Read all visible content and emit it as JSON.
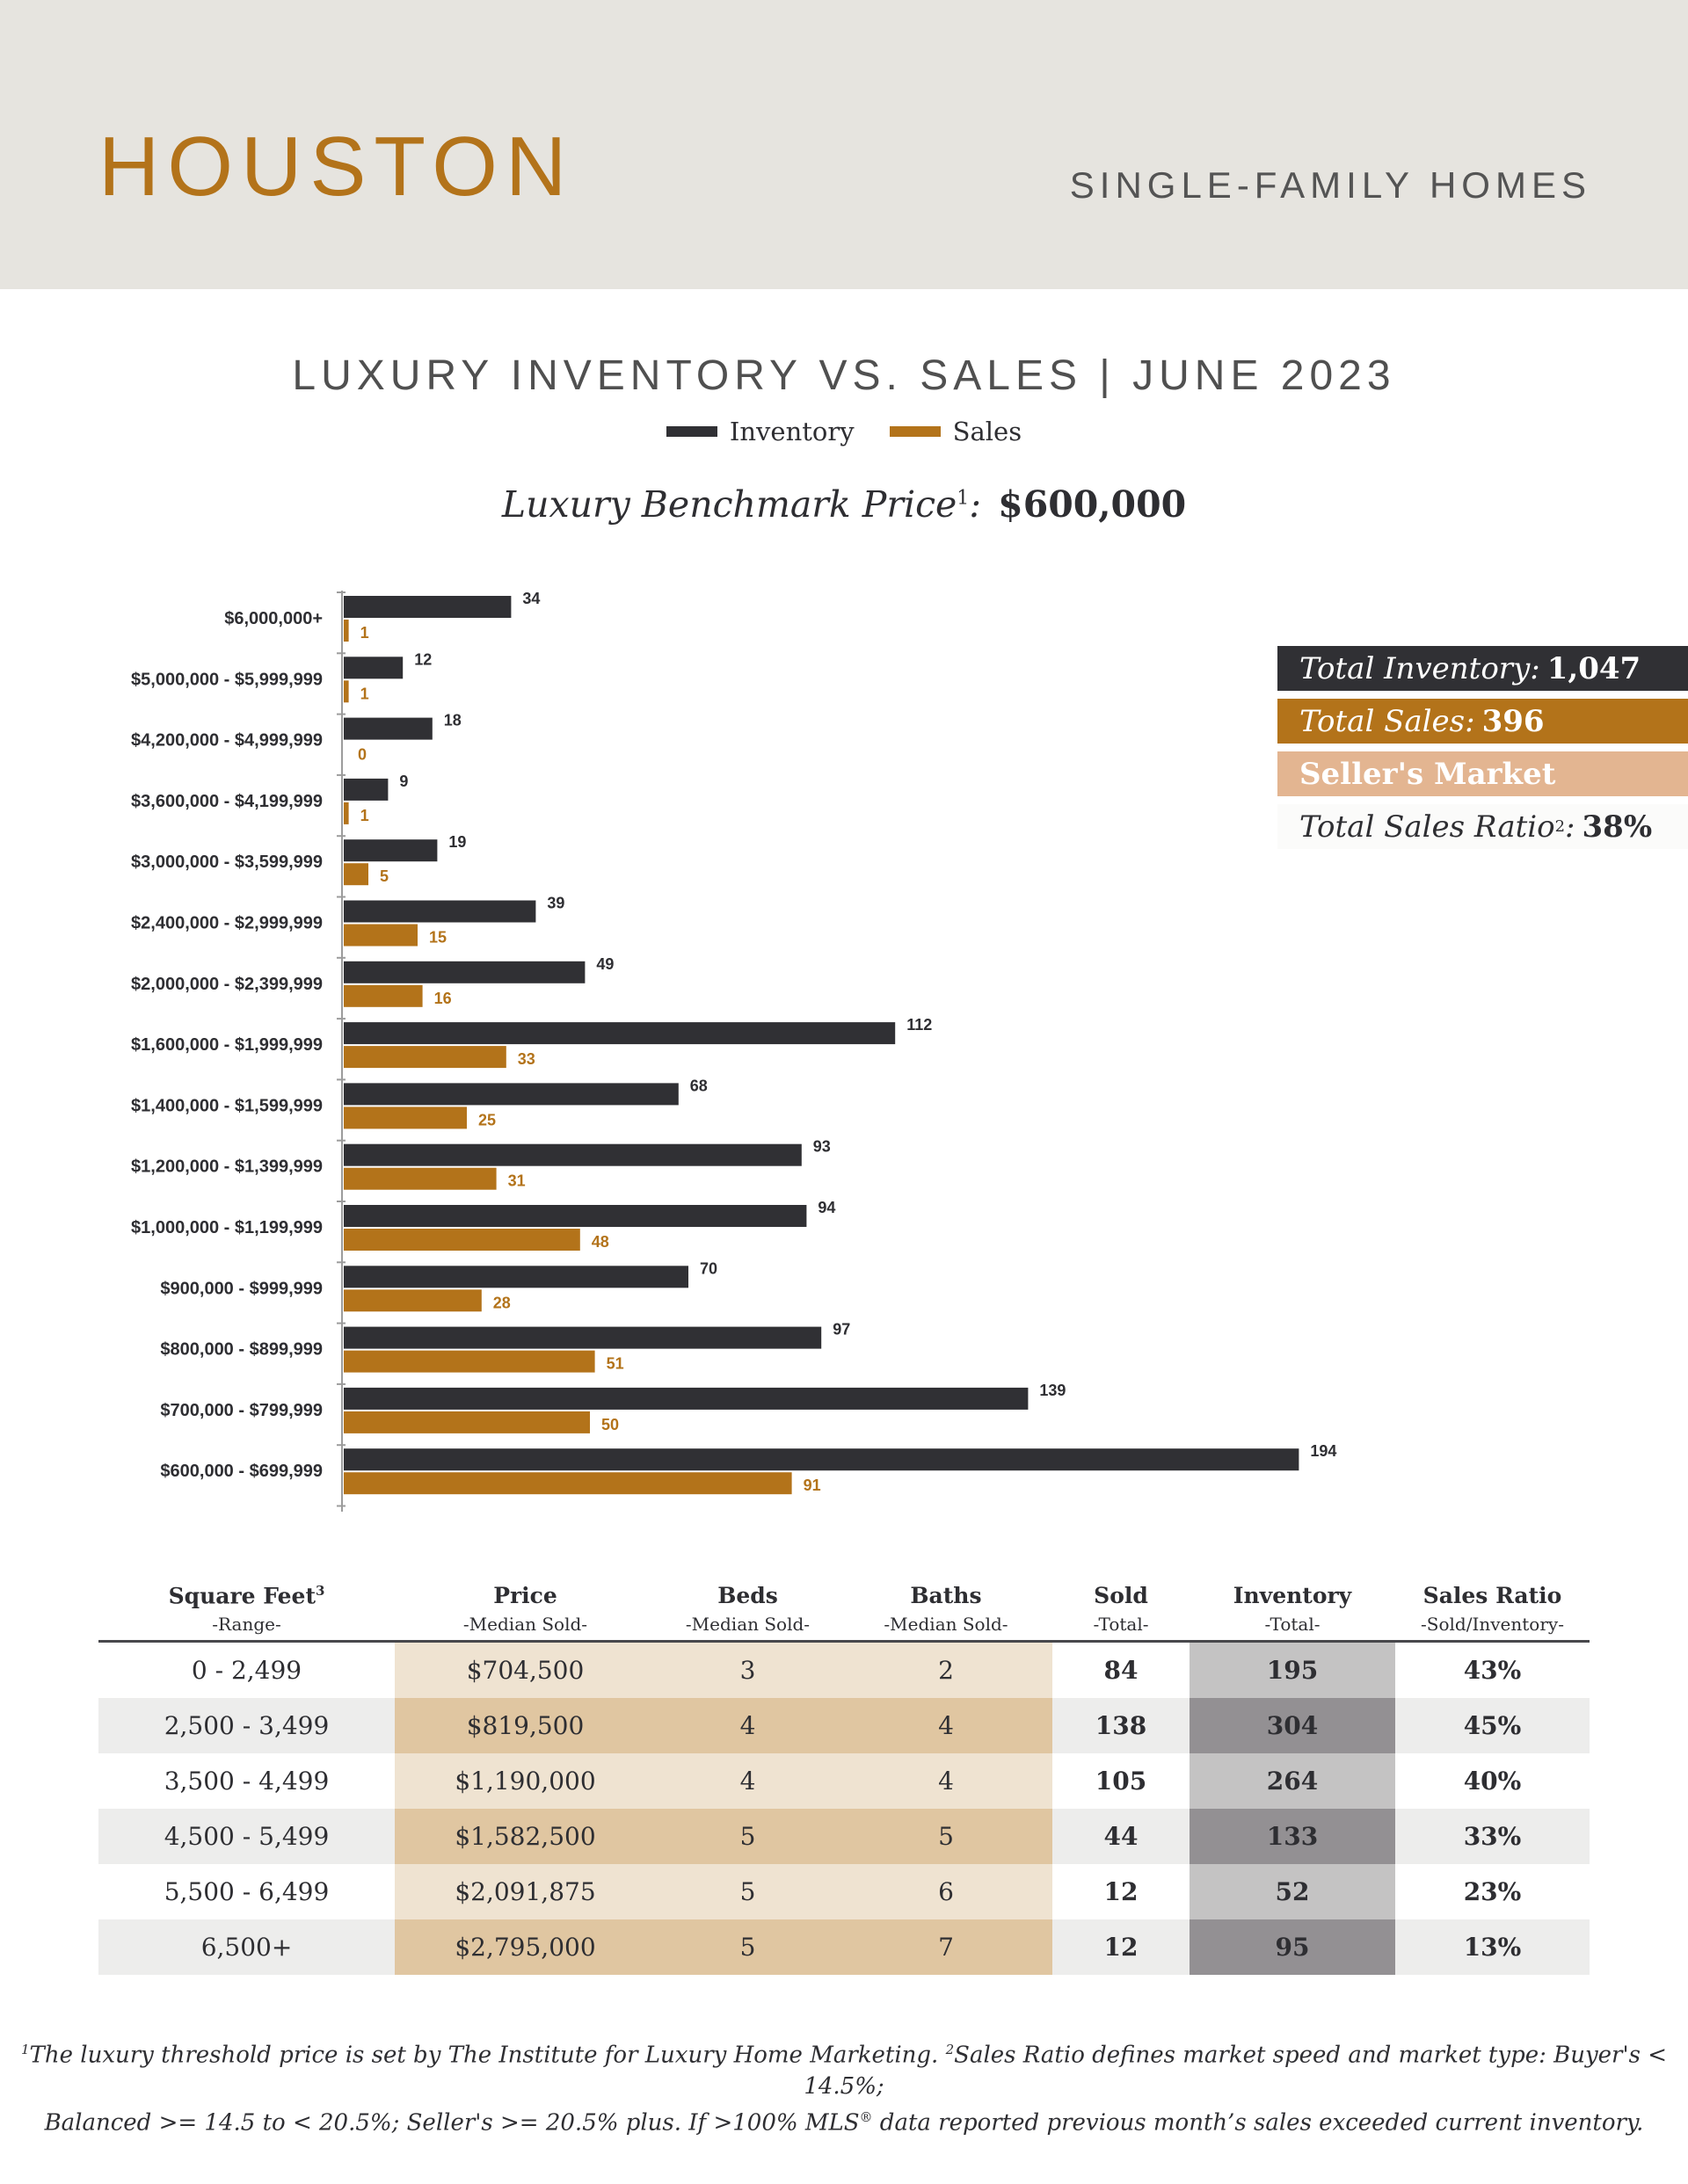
{
  "header": {
    "city": "HOUSTON",
    "property_type": "SINGLE-FAMILY HOMES"
  },
  "chart_data": {
    "type": "bar",
    "orientation": "horizontal",
    "title": "LUXURY INVENTORY VS. SALES | JUNE 2023",
    "categories": [
      "$6,000,000+",
      "$5,000,000 - $5,999,999",
      "$4,200,000 - $4,999,999",
      "$3,600,000 - $4,199,999",
      "$3,000,000 - $3,599,999",
      "$2,400,000 - $2,999,999",
      "$2,000,000 - $2,399,999",
      "$1,600,000 - $1,999,999",
      "$1,400,000 - $1,599,999",
      "$1,200,000 - $1,399,999",
      "$1,000,000 - $1,199,999",
      "$900,000 - $999,999",
      "$800,000 - $899,999",
      "$700,000 - $799,999",
      "$600,000 - $699,999"
    ],
    "series": [
      {
        "name": "Inventory",
        "color": "#303034",
        "values": [
          34,
          12,
          18,
          9,
          19,
          39,
          49,
          112,
          68,
          93,
          94,
          70,
          97,
          139,
          194
        ]
      },
      {
        "name": "Sales",
        "color": "#b3731a",
        "values": [
          1,
          1,
          0,
          1,
          5,
          15,
          16,
          33,
          25,
          31,
          48,
          28,
          51,
          50,
          91
        ]
      }
    ],
    "legend": "top-center",
    "grid": false
  },
  "benchmark": {
    "label": "Luxury Benchmark Price",
    "sup": "1",
    "value": "$600,000"
  },
  "summary": {
    "inventory_label": "Total Inventory:",
    "inventory_value": "1,047",
    "sales_label": "Total Sales:",
    "sales_value": "396",
    "market": "Seller's Market",
    "ratio_label": "Total Sales Ratio",
    "ratio_sup": "2",
    "ratio_value": "38%"
  },
  "table": {
    "headers": [
      {
        "title": "Square Feet",
        "sup": "3",
        "sub": "-Range-"
      },
      {
        "title": "Price",
        "sup": "",
        "sub": "-Median Sold-"
      },
      {
        "title": "Beds",
        "sup": "",
        "sub": "-Median Sold-"
      },
      {
        "title": "Baths",
        "sup": "",
        "sub": "-Median Sold-"
      },
      {
        "title": "Sold",
        "sup": "",
        "sub": "-Total-"
      },
      {
        "title": "Inventory",
        "sup": "",
        "sub": "-Total-"
      },
      {
        "title": "Sales Ratio",
        "sup": "",
        "sub": "-Sold/Inventory-"
      }
    ],
    "rows": [
      [
        "0 - 2,499",
        "$704,500",
        "3",
        "2",
        "84",
        "195",
        "43%"
      ],
      [
        "2,500 - 3,499",
        "$819,500",
        "4",
        "4",
        "138",
        "304",
        "45%"
      ],
      [
        "3,500 - 4,499",
        "$1,190,000",
        "4",
        "4",
        "105",
        "264",
        "40%"
      ],
      [
        "4,500 - 5,499",
        "$1,582,500",
        "5",
        "5",
        "44",
        "133",
        "33%"
      ],
      [
        "5,500 - 6,499",
        "$2,091,875",
        "5",
        "6",
        "12",
        "52",
        "23%"
      ],
      [
        "6,500+",
        "$2,795,000",
        "5",
        "7",
        "12",
        "95",
        "13%"
      ]
    ],
    "colors": {
      "price_light": "#efe3d1",
      "price_dark": "#e0c6a1",
      "inventory_light": "#c4c3c3",
      "inventory_dark": "#939093",
      "row_alt": "#ededec"
    }
  },
  "footnote": {
    "line1_sup": "1",
    "line1a": "The luxury threshold price is set by The Institute for Luxury Home Marketing. ",
    "line1_sup2": "2",
    "line1b": "Sales Ratio defines market speed and market type: Buyer's < 14.5%;",
    "line2a": "Balanced >= 14.5 to < 20.5%; Seller's >= 20.5% plus. If >100% MLS",
    "line2_reg": "®",
    "line2b": " data reported previous month’s sales exceeded current inventory."
  }
}
